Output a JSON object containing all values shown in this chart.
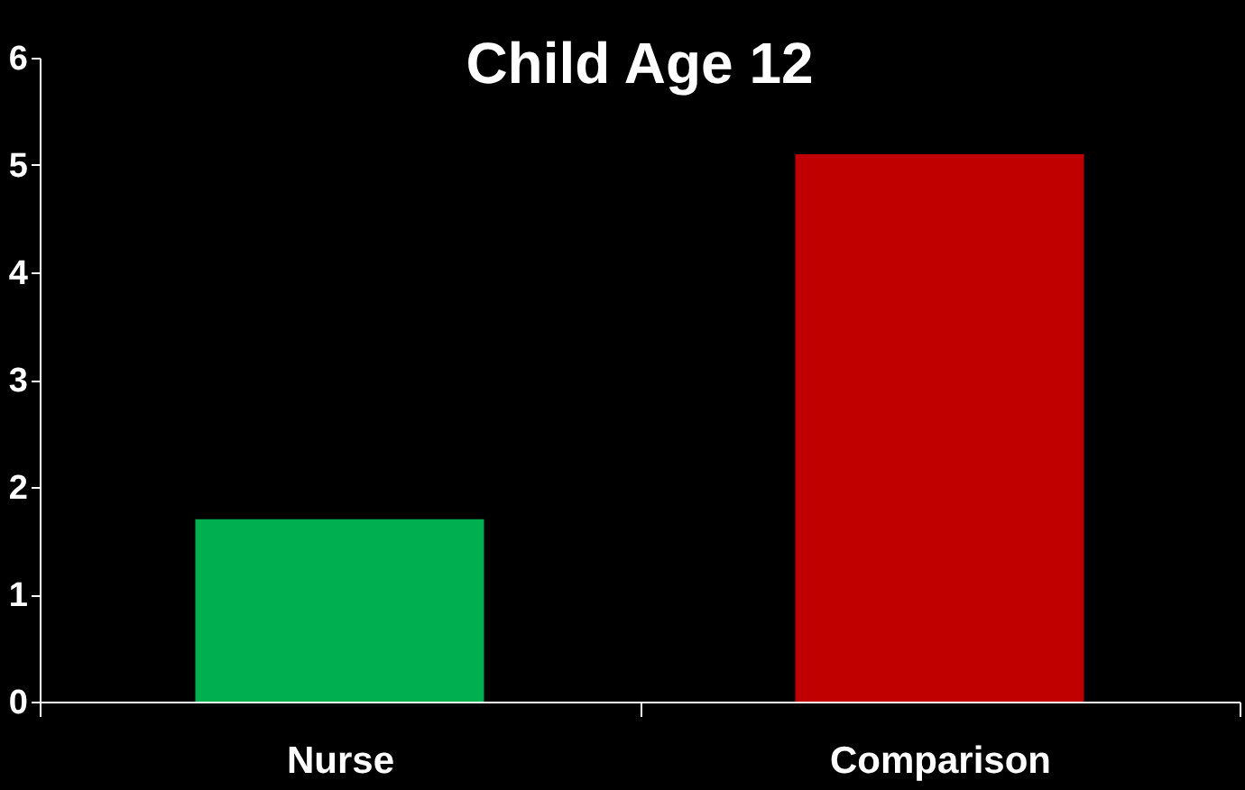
{
  "chart_data": {
    "type": "bar",
    "title": "Child Age 12",
    "categories": [
      "Nurse",
      "Comparison"
    ],
    "values": [
      1.7,
      5.1
    ],
    "colors": [
      "#00b050",
      "#c00000"
    ],
    "ylim": [
      0,
      6
    ],
    "yticks": [
      0,
      1,
      2,
      3,
      4,
      5,
      6
    ],
    "grid": false
  }
}
